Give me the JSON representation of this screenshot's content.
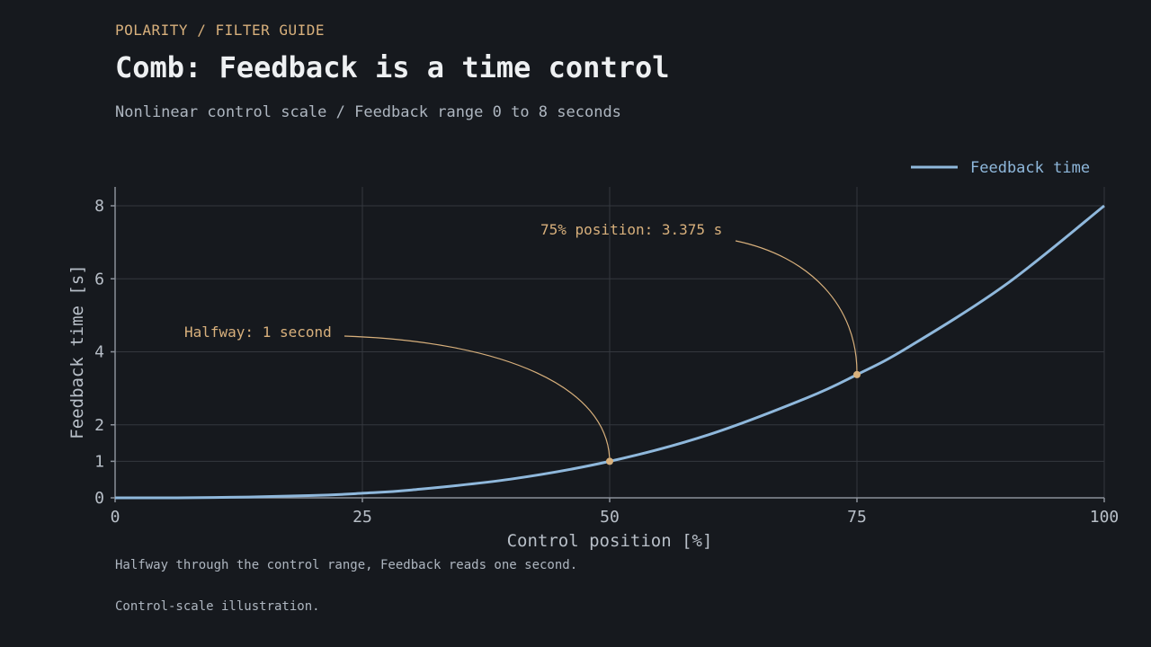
{
  "header": {
    "eyebrow": "POLARITY / FILTER GUIDE",
    "title": "Comb: Feedback is a time control",
    "subtitle": "Nonlinear control scale / Feedback range 0 to 8 seconds"
  },
  "footer": {
    "note": "Halfway through the control range, Feedback reads one second.",
    "caption": "Control-scale illustration."
  },
  "colors": {
    "background": "#16191e",
    "series": "#8fb8dc",
    "annotation": "#d8b07c",
    "grid": "#34383e",
    "axis": "#8a9099"
  },
  "chart_data": {
    "type": "line",
    "title": "Comb: Feedback is a time control",
    "xlabel": "Control position [%]",
    "ylabel": "Feedback time [s]",
    "xlim": [
      0,
      100
    ],
    "ylim": [
      0,
      8
    ],
    "xticks": [
      0,
      25,
      50,
      75,
      100
    ],
    "yticks": [
      0,
      1,
      2,
      4,
      6,
      8
    ],
    "grid": true,
    "legend_position": "top-right",
    "series": [
      {
        "name": "Feedback time",
        "x": [
          0,
          10,
          20,
          25,
          30,
          40,
          50,
          60,
          70,
          75,
          80,
          90,
          100
        ],
        "y": [
          0,
          0.008,
          0.064,
          0.125,
          0.216,
          0.512,
          1,
          1.728,
          2.744,
          3.375,
          4.096,
          5.832,
          8
        ]
      }
    ],
    "annotations": [
      {
        "text": "Halfway: 1 second",
        "x": 50,
        "y": 1
      },
      {
        "text": "75% position: 3.375 s",
        "x": 75,
        "y": 3.375
      }
    ]
  }
}
